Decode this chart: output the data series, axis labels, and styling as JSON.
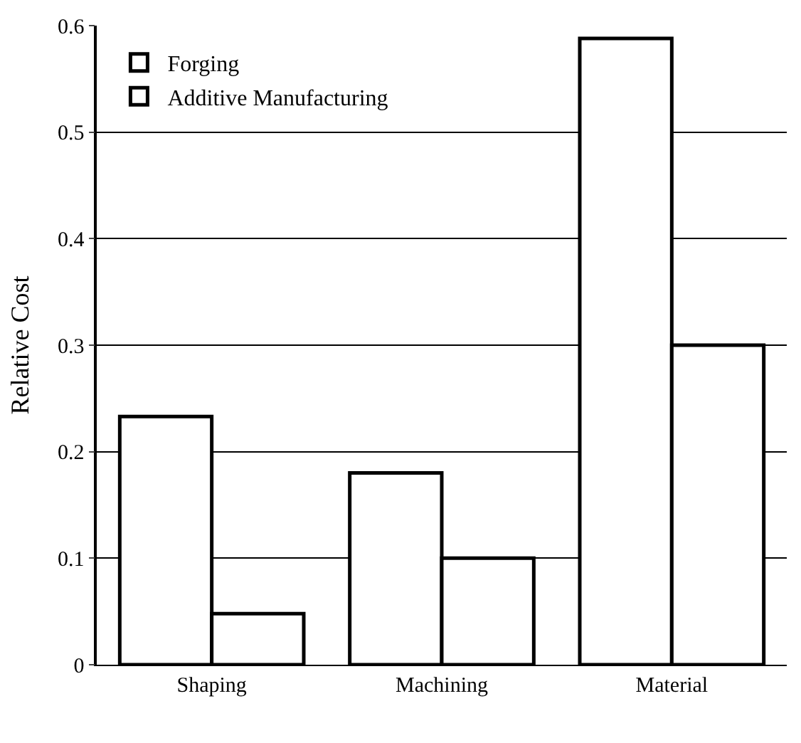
{
  "chart_data": {
    "type": "bar",
    "ylabel": "Relative Cost",
    "categories": [
      "Shaping",
      "Machining",
      "Material"
    ],
    "series": [
      {
        "name": "Forging",
        "color": "#ffffff",
        "values": [
          0.233,
          0.18,
          0.588
        ]
      },
      {
        "name": "Additive Manufacturing",
        "color": "#ffffff",
        "values": [
          0.048,
          0.1,
          0.3
        ]
      }
    ],
    "ylim": [
      0,
      0.6
    ],
    "yticks": [
      0,
      {
        "value": 0.1,
        "label": "0.1"
      },
      {
        "value": 0.2,
        "label": "0.2"
      },
      {
        "value": 0.3,
        "label": "0.3"
      },
      {
        "value": 0.4,
        "label": "0.4"
      },
      {
        "value": 0.5,
        "label": "0.5"
      },
      {
        "value": 0.6,
        "label": "0.6"
      }
    ],
    "grid": "y",
    "legend": "top left"
  }
}
